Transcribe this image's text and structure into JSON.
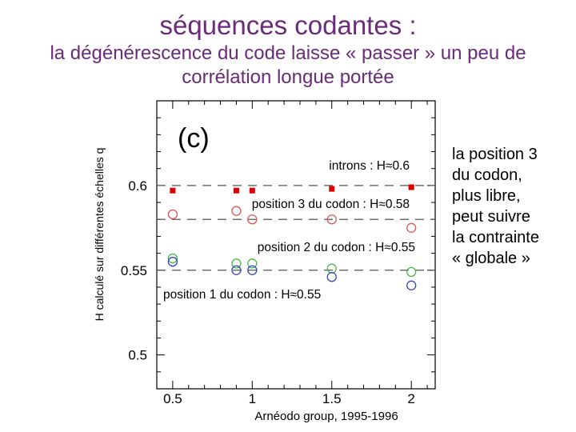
{
  "slide": {
    "title": "séquences codantes :",
    "subtitle": "la dégénérescence du code laisse « passer » un peu de corrélation longue portée",
    "side_note": [
      "la position 3",
      "du codon,",
      "plus libre,",
      "peut suivre",
      "la contrainte",
      "« globale »"
    ],
    "credit": "Arnéodo group, 1995-1996"
  },
  "colors": {
    "title": "#6b2a7a",
    "introns": "#dd0000",
    "position3": "#e05555",
    "position2": "#44bb44",
    "position1": "#3344bb",
    "dashes": "#555555"
  },
  "chart_data": {
    "type": "scatter",
    "panel_label": "(c)",
    "xlabel": "",
    "ylabel": "H calculé sur différentes échelles q",
    "xlim": [
      0.4,
      2.15
    ],
    "ylim": [
      0.48,
      0.65
    ],
    "xticks": [
      "0.5",
      "1",
      "1.5",
      "2"
    ],
    "yticks": [
      "0.5",
      "0.55",
      "0.6"
    ],
    "grid": false,
    "series": [
      {
        "name": "introns",
        "label": "introns : H≈0.6",
        "marker": "filled-square",
        "color": "#dd0000",
        "reference_H": 0.6,
        "x": [
          0.5,
          0.9,
          1.0,
          1.5,
          2.0
        ],
        "y": [
          0.597,
          0.597,
          0.597,
          0.598,
          0.599
        ]
      },
      {
        "name": "position 3 du codon",
        "label": "position 3 du codon : H≈0.58",
        "marker": "open-circle",
        "color": "#e05555",
        "reference_H": 0.58,
        "x": [
          0.5,
          0.9,
          1.0,
          1.5,
          2.0
        ],
        "y": [
          0.583,
          0.585,
          0.58,
          0.58,
          0.575
        ]
      },
      {
        "name": "position 2 du codon",
        "label": "position 2 du codon : H≈0.55",
        "marker": "open-circle",
        "color": "#44bb44",
        "reference_H": 0.55,
        "x": [
          0.5,
          0.9,
          1.0,
          1.5,
          2.0
        ],
        "y": [
          0.557,
          0.554,
          0.554,
          0.551,
          0.549
        ]
      },
      {
        "name": "position 1 du codon",
        "label": "position 1 du codon : H≈0.55",
        "marker": "open-circle",
        "color": "#3344bb",
        "reference_H": 0.55,
        "x": [
          0.5,
          0.9,
          1.0,
          1.5,
          2.0
        ],
        "y": [
          0.555,
          0.55,
          0.55,
          0.546,
          0.541
        ]
      }
    ]
  }
}
